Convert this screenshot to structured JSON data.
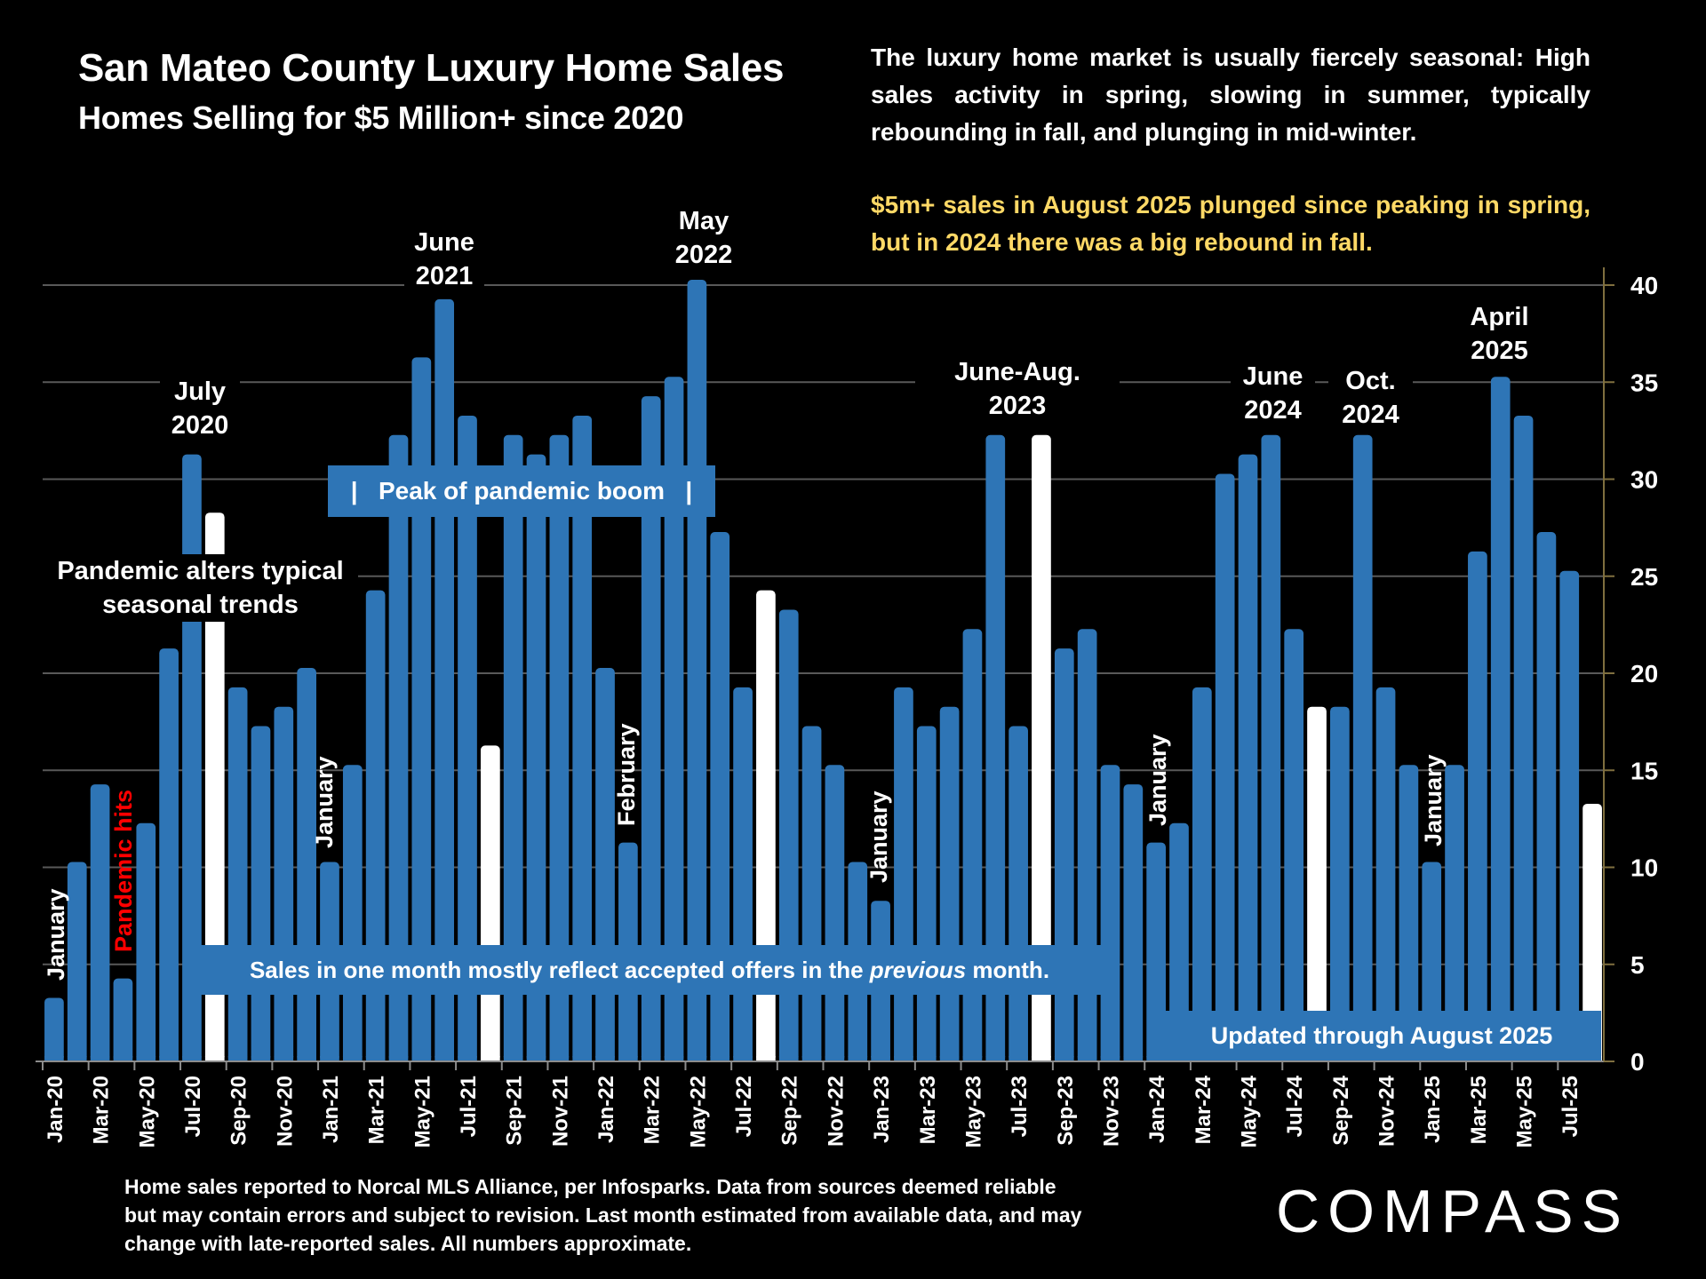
{
  "header": {
    "title": "San Mateo County Luxury Home Sales",
    "subtitle": "Homes Selling for $5 Million+ since 2020"
  },
  "description": "The luxury home market is usually fiercely seasonal: High sales activity in spring, slowing in summer, typically rebounding in fall, and plunging in mid-winter.",
  "highlight": "$5m+ sales in August 2025 plunged since peaking in spring, but in 2024 there was a big rebound in fall.",
  "colors": {
    "bar": "#2E75B6",
    "highlight_bar": "#FFFFFF",
    "background": "#000000",
    "highlight_text": "#FFD966",
    "pandemic_text": "#FF0000",
    "gridline": "#595959",
    "axis": "#7F6F3F"
  },
  "annotations": {
    "july_2020": "July\n2020",
    "june_2021": "June\n2021",
    "may_2022": "May\n2022",
    "june_aug_2023": "June-Aug.\n2023",
    "june_2024": "June\n2024",
    "oct_2024": "Oct.\n2024",
    "april_2025": "April\n2025",
    "pandemic_alters": "Pandemic alters typical\nseasonal trends",
    "peak_boom": "|   Peak of pandemic boom   |",
    "pandemic_hits": "Pandemic hits",
    "january_1": "January",
    "january_2": "January",
    "february": "February",
    "january_3": "January",
    "january_4": "January",
    "january_5": "January",
    "sales_note_pre": "Sales in one month mostly reflect accepted offers in the ",
    "sales_note_em": "previous",
    "sales_note_post": " month.",
    "updated": "Updated through August 2025"
  },
  "footer": "Home sales reported to Norcal MLS Alliance, per Infosparks. Data from sources deemed reliable but may contain errors and subject to revision.  Last month estimated from available data, and may change with late-reported sales. All numbers approximate.",
  "logo": "COMPASS",
  "chart_data": {
    "type": "bar",
    "title": "San Mateo County Luxury Home Sales",
    "subtitle": "Homes Selling for $5 Million+ since 2020",
    "xlabel": "",
    "ylabel": "",
    "ylim": [
      0,
      40
    ],
    "yticks": [
      0,
      5,
      10,
      15,
      20,
      25,
      30,
      35,
      40
    ],
    "y_axis_side": "right",
    "grid": true,
    "legend": "none",
    "categories": [
      "Jan-20",
      "Feb-20",
      "Mar-20",
      "Apr-20",
      "May-20",
      "Jun-20",
      "Jul-20",
      "Aug-20",
      "Sep-20",
      "Oct-20",
      "Nov-20",
      "Dec-20",
      "Jan-21",
      "Feb-21",
      "Mar-21",
      "Apr-21",
      "May-21",
      "Jun-21",
      "Jul-21",
      "Aug-21",
      "Sep-21",
      "Oct-21",
      "Nov-21",
      "Dec-21",
      "Jan-22",
      "Feb-22",
      "Mar-22",
      "Apr-22",
      "May-22",
      "Jun-22",
      "Jul-22",
      "Aug-22",
      "Sep-22",
      "Oct-22",
      "Nov-22",
      "Dec-22",
      "Jan-23",
      "Feb-23",
      "Mar-23",
      "Apr-23",
      "May-23",
      "Jun-23",
      "Jul-23",
      "Aug-23",
      "Sep-23",
      "Oct-23",
      "Nov-23",
      "Dec-23",
      "Jan-24",
      "Feb-24",
      "Mar-24",
      "Apr-24",
      "May-24",
      "Jun-24",
      "Jul-24",
      "Aug-24",
      "Sep-24",
      "Oct-24",
      "Nov-24",
      "Dec-24",
      "Jan-25",
      "Feb-25",
      "Mar-25",
      "Apr-25",
      "May-25",
      "Jun-25",
      "Jul-25",
      "Aug-25"
    ],
    "values": [
      3,
      10,
      14,
      4,
      12,
      21,
      31,
      28,
      19,
      17,
      18,
      20,
      10,
      15,
      24,
      32,
      36,
      39,
      33,
      16,
      32,
      31,
      32,
      33,
      20,
      11,
      34,
      35,
      40,
      27,
      19,
      24,
      23,
      17,
      15,
      10,
      8,
      19,
      17,
      18,
      22,
      32,
      17,
      32,
      21,
      22,
      15,
      14,
      11,
      12,
      19,
      30,
      31,
      32,
      22,
      18,
      18,
      32,
      19,
      15,
      10,
      15,
      26,
      35,
      33,
      27,
      25,
      13
    ],
    "highlighted": [
      "Aug-20",
      "Aug-21",
      "Aug-22",
      "Aug-23",
      "Aug-24",
      "Aug-25"
    ],
    "tick_labels": [
      "Jan-20",
      "Mar-20",
      "May-20",
      "Jul-20",
      "Sep-20",
      "Nov-20",
      "Jan-21",
      "Mar-21",
      "May-21",
      "Jul-21",
      "Sep-21",
      "Nov-21",
      "Jan-22",
      "Mar-22",
      "May-22",
      "Jul-22",
      "Sep-22",
      "Nov-22",
      "Jan-23",
      "Mar-23",
      "May-23",
      "Jul-23",
      "Sep-23",
      "Nov-23",
      "Jan-24",
      "Mar-24",
      "May-24",
      "Jul-24",
      "Sep-24",
      "Nov-24",
      "Jan-25",
      "Mar-25",
      "May-25",
      "Jul-25"
    ]
  }
}
